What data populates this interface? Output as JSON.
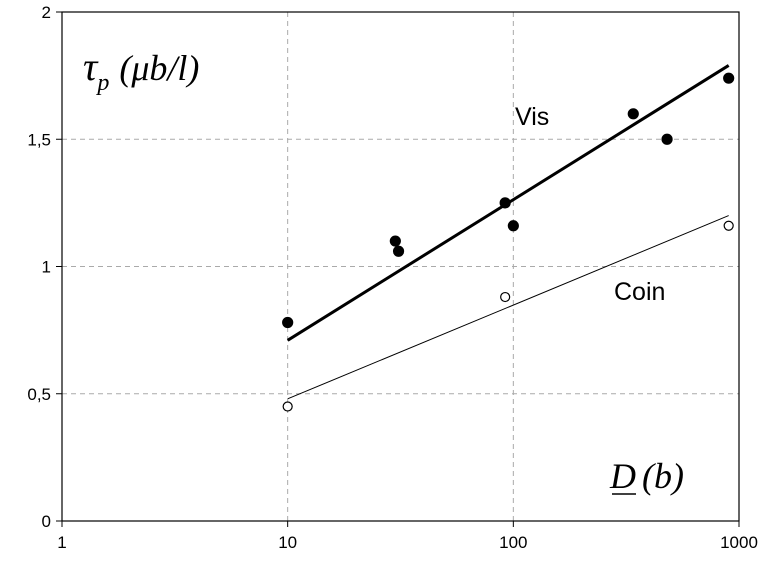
{
  "chart_data": {
    "type": "scatter",
    "x_scale": "log",
    "xlim": [
      1,
      1000
    ],
    "ylim": [
      0,
      2
    ],
    "grid": true,
    "x_ticks": [
      "1",
      "10",
      "100",
      "1000"
    ],
    "y_ticks": [
      "0",
      "0,5",
      "1",
      "1,5",
      "2"
    ],
    "ylabel": {
      "main": "τ",
      "sub": "p",
      "unit": "(μb/l)"
    },
    "xlabel": {
      "main": "D",
      "unit": "(b)"
    },
    "series": [
      {
        "name": "Vis",
        "marker": "filled",
        "points": [
          {
            "x": 10,
            "y": 0.78
          },
          {
            "x": 30,
            "y": 1.1
          },
          {
            "x": 31,
            "y": 1.06
          },
          {
            "x": 92,
            "y": 1.25
          },
          {
            "x": 100,
            "y": 1.16
          },
          {
            "x": 340,
            "y": 1.6
          },
          {
            "x": 480,
            "y": 1.5
          },
          {
            "x": 900,
            "y": 1.74
          }
        ],
        "fit": [
          {
            "x": 10,
            "y": 0.71
          },
          {
            "x": 900,
            "y": 1.79
          }
        ]
      },
      {
        "name": "Coin",
        "marker": "open",
        "points": [
          {
            "x": 10,
            "y": 0.45
          },
          {
            "x": 92,
            "y": 0.88
          },
          {
            "x": 900,
            "y": 1.16
          }
        ],
        "fit": [
          {
            "x": 10,
            "y": 0.48
          },
          {
            "x": 900,
            "y": 1.2
          }
        ]
      }
    ]
  }
}
